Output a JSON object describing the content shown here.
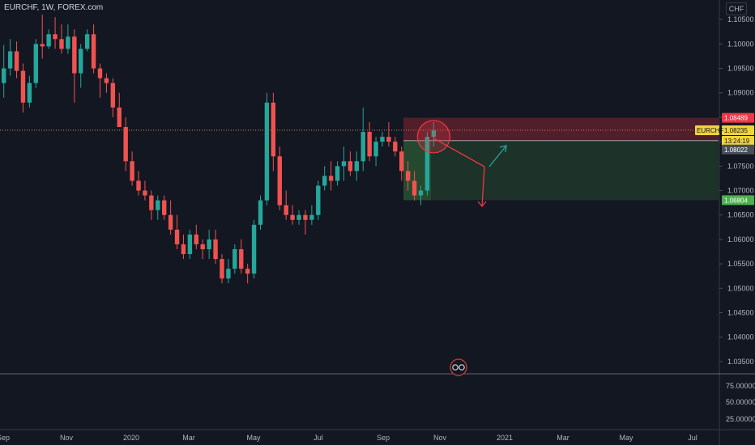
{
  "header": {
    "title": "EURCHF, 1W, FOREX.com"
  },
  "price_axis": {
    "currency": "CHF",
    "ticks": [
      "1.10500",
      "1.10000",
      "1.09500",
      "1.09000",
      "1.08500",
      "1.08000",
      "1.07500",
      "1.07000",
      "1.06500",
      "1.06000",
      "1.05500",
      "1.05000",
      "1.04500",
      "1.04000",
      "1.03500"
    ],
    "badges": {
      "stop_loss": "1.08489",
      "symbol": "EURCHF",
      "current_price": "1.08235",
      "countdown": "13:24:19",
      "entry": "1.08022",
      "take_profit": "1.06804"
    }
  },
  "indicator_axis": {
    "ticks": [
      "75.00000",
      "50.00000",
      "25.00000"
    ]
  },
  "time_axis": {
    "ticks": [
      "Sep",
      "Nov",
      "2020",
      "Mar",
      "May",
      "Jul",
      "Sep",
      "Nov",
      "2021",
      "Mar",
      "May",
      "Jul"
    ]
  },
  "colors": {
    "up": "#26a69a",
    "down": "#ef5350",
    "background": "#131722",
    "badge_yellow": "#f0d43a",
    "badge_red": "#f23645",
    "badge_green": "#4caf50"
  },
  "chart_data": {
    "type": "candlestick",
    "symbol": "EURCHF",
    "interval": "1W",
    "y_range": [
      1.0325,
      1.109
    ],
    "candles": [
      [
        1.092,
        1.0998,
        1.089,
        1.095
      ],
      [
        1.095,
        1.101,
        1.0935,
        1.0985
      ],
      [
        1.0985,
        1.1005,
        1.093,
        1.0945
      ],
      [
        1.0945,
        1.096,
        1.086,
        1.088
      ],
      [
        1.088,
        1.0935,
        1.087,
        1.092
      ],
      [
        1.092,
        1.101,
        1.091,
        1.1
      ],
      [
        1.1,
        1.106,
        1.097,
        1.0995
      ],
      [
        1.0995,
        1.103,
        1.099,
        1.102
      ],
      [
        1.102,
        1.1055,
        1.099,
        1.101
      ],
      [
        1.101,
        1.104,
        1.098,
        1.099
      ],
      [
        1.099,
        1.104,
        1.098,
        1.1015
      ],
      [
        1.1015,
        1.103,
        1.088,
        1.094
      ],
      [
        1.094,
        1.1,
        1.091,
        1.099
      ],
      [
        1.099,
        1.103,
        1.0985,
        1.102
      ],
      [
        1.102,
        1.104,
        1.094,
        1.095
      ],
      [
        1.095,
        1.096,
        1.089,
        1.093
      ],
      [
        1.093,
        1.094,
        1.09,
        1.092
      ],
      [
        1.092,
        1.093,
        1.085,
        1.087
      ],
      [
        1.087,
        1.09,
        1.083,
        1.083
      ],
      [
        1.083,
        1.085,
        1.074,
        1.076
      ],
      [
        1.076,
        1.078,
        1.071,
        1.072
      ],
      [
        1.072,
        1.074,
        1.069,
        1.07
      ],
      [
        1.07,
        1.072,
        1.068,
        1.069
      ],
      [
        1.069,
        1.07,
        1.064,
        1.066
      ],
      [
        1.066,
        1.069,
        1.064,
        1.068
      ],
      [
        1.068,
        1.069,
        1.064,
        1.065
      ],
      [
        1.065,
        1.068,
        1.061,
        1.062
      ],
      [
        1.062,
        1.065,
        1.058,
        1.059
      ],
      [
        1.059,
        1.061,
        1.056,
        1.057
      ],
      [
        1.057,
        1.062,
        1.056,
        1.061
      ],
      [
        1.061,
        1.063,
        1.058,
        1.059
      ],
      [
        1.059,
        1.06,
        1.056,
        1.058
      ],
      [
        1.058,
        1.062,
        1.056,
        1.06
      ],
      [
        1.06,
        1.062,
        1.055,
        1.056
      ],
      [
        1.056,
        1.057,
        1.051,
        1.052
      ],
      [
        1.052,
        1.056,
        1.051,
        1.054
      ],
      [
        1.054,
        1.059,
        1.053,
        1.058
      ],
      [
        1.058,
        1.06,
        1.053,
        1.054
      ],
      [
        1.054,
        1.055,
        1.051,
        1.053
      ],
      [
        1.053,
        1.064,
        1.052,
        1.063
      ],
      [
        1.063,
        1.069,
        1.062,
        1.068
      ],
      [
        1.068,
        1.09,
        1.067,
        1.088
      ],
      [
        1.088,
        1.09,
        1.074,
        1.077
      ],
      [
        1.077,
        1.079,
        1.066,
        1.067
      ],
      [
        1.067,
        1.07,
        1.064,
        1.065
      ],
      [
        1.065,
        1.067,
        1.063,
        1.064
      ],
      [
        1.064,
        1.066,
        1.063,
        1.065
      ],
      [
        1.065,
        1.066,
        1.061,
        1.064
      ],
      [
        1.064,
        1.067,
        1.063,
        1.065
      ],
      [
        1.065,
        1.072,
        1.064,
        1.071
      ],
      [
        1.071,
        1.075,
        1.07,
        1.073
      ],
      [
        1.073,
        1.076,
        1.07,
        1.072
      ],
      [
        1.072,
        1.076,
        1.071,
        1.075
      ],
      [
        1.075,
        1.079,
        1.072,
        1.076
      ],
      [
        1.076,
        1.078,
        1.073,
        1.074
      ],
      [
        1.074,
        1.078,
        1.072,
        1.076
      ],
      [
        1.076,
        1.087,
        1.074,
        1.082
      ],
      [
        1.082,
        1.084,
        1.076,
        1.077
      ],
      [
        1.077,
        1.081,
        1.075,
        1.08
      ],
      [
        1.08,
        1.082,
        1.079,
        1.081
      ],
      [
        1.081,
        1.084,
        1.079,
        1.08
      ],
      [
        1.08,
        1.081,
        1.077,
        1.078
      ],
      [
        1.078,
        1.079,
        1.072,
        1.074
      ],
      [
        1.074,
        1.076,
        1.07,
        1.072
      ],
      [
        1.072,
        1.074,
        1.068,
        1.069
      ],
      [
        1.069,
        1.071,
        1.067,
        1.07
      ],
      [
        1.07,
        1.082,
        1.069,
        1.081
      ],
      [
        1.081,
        1.084,
        1.079,
        1.0823
      ]
    ],
    "position": {
      "side": "short",
      "stop_loss": 1.08489,
      "entry": 1.08022,
      "take_profit": 1.06804
    },
    "current_price": 1.08235,
    "indicator": {
      "ticks": [
        75,
        50,
        25
      ]
    },
    "time_ticks": [
      "Sep",
      "Nov",
      "2020",
      "Mar",
      "May",
      "Jul",
      "Sep",
      "Nov",
      "2021",
      "Mar",
      "May",
      "Jul"
    ]
  }
}
